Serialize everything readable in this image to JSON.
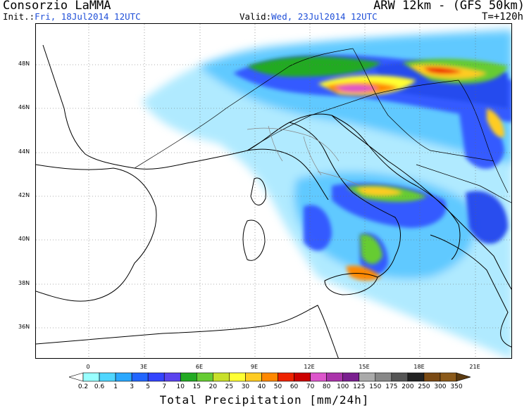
{
  "header": {
    "org": "Consorzio LaMMA",
    "model": "ARW 12km  - (GFS 50km)",
    "init_label": "Init.:",
    "init_value": "Fri, 18Jul2014  12UTC",
    "valid_label": "Valid:",
    "valid_value": "Wed, 23Jul2014  12UTC",
    "forecast_step": "T=+120h"
  },
  "map": {
    "lat_labels": [
      "48N",
      "46N",
      "44N",
      "42N",
      "40N",
      "38N",
      "36N"
    ],
    "lon_labels": [
      "0",
      "3E",
      "6E",
      "9E",
      "12E",
      "15E",
      "18E",
      "21E"
    ],
    "lat_range": [
      34.5,
      50.0
    ],
    "lon_range": [
      -3.0,
      22.0
    ]
  },
  "colorbar": {
    "title": "Total Precipitation [mm/24h]",
    "labels": [
      "0.2",
      "0.6",
      "1",
      "3",
      "5",
      "7",
      "10",
      "15",
      "20",
      "25",
      "30",
      "40",
      "50",
      "60",
      "70",
      "80",
      "100",
      "125",
      "150",
      "175",
      "200",
      "250",
      "300",
      "350"
    ],
    "colors": [
      "#ffffff",
      "#99ffff",
      "#4fd6ff",
      "#2aa8ff",
      "#2266ff",
      "#3344ff",
      "#5a44ee",
      "#22aa22",
      "#66cc33",
      "#c8e02a",
      "#ffff33",
      "#ffcc22",
      "#ff8800",
      "#ee2200",
      "#cc0000",
      "#dd55cc",
      "#aa33aa",
      "#7a1f8f",
      "#aaaaaa",
      "#888888",
      "#555555",
      "#222222",
      "#7a4a14",
      "#8b5a1a",
      "#5a3a10"
    ]
  }
}
